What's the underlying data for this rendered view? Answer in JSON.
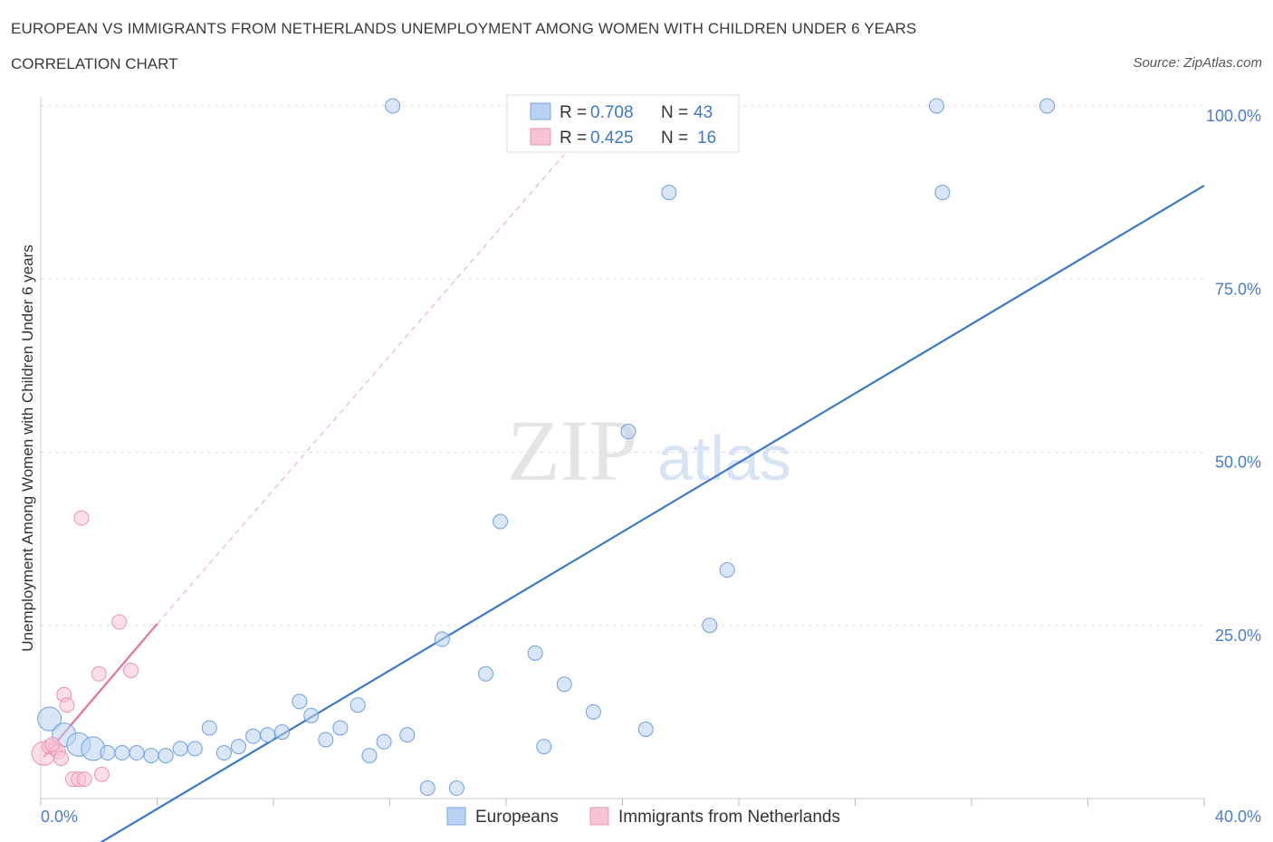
{
  "title": "EUROPEAN VS IMMIGRANTS FROM NETHERLANDS UNEMPLOYMENT AMONG WOMEN WITH CHILDREN UNDER 6 YEARS",
  "subtitle": "CORRELATION CHART",
  "source": "Source: ZipAtlas.com",
  "watermark": {
    "zip": "ZIP",
    "atlas": "atlas"
  },
  "colors": {
    "blue": "#3d78c8",
    "blue_fill": "#b9d2f3",
    "pink": "#e8709a",
    "pink_fill": "#f7c2d2",
    "grid": "#dddddd"
  },
  "legend": {
    "r_label": "R =",
    "n_label": "N =",
    "rows": [
      {
        "r": "0.708",
        "n": "43"
      },
      {
        "r": "0.425",
        "n": "16"
      }
    ]
  },
  "chart_data": {
    "type": "scatter",
    "title": "EUROPEAN VS IMMIGRANTS FROM NETHERLANDS UNEMPLOYMENT AMONG WOMEN WITH CHILDREN UNDER 6 YEARS",
    "xlabel": "",
    "ylabel": "Unemployment Among Women with Children Under 6 years",
    "xlim": [
      0,
      40
    ],
    "ylim": [
      0,
      100
    ],
    "x_tick_labels": [
      "0.0%",
      "40.0%"
    ],
    "y_tick_labels": [
      "25.0%",
      "50.0%",
      "75.0%",
      "100.0%"
    ],
    "y_ticks": [
      25,
      50,
      75,
      100
    ],
    "series": [
      {
        "name": "Europeans",
        "color": "#3d78c8",
        "r": 0.708,
        "n": 43,
        "trend": {
          "x0": 0,
          "y0": -11.5,
          "x1": 40,
          "y1": 88.5
        },
        "points": [
          {
            "x": 0.3,
            "y": 11.5,
            "big": true
          },
          {
            "x": 0.8,
            "y": 9.2,
            "big": true
          },
          {
            "x": 1.3,
            "y": 7.8,
            "big": true
          },
          {
            "x": 1.8,
            "y": 7.2,
            "big": true
          },
          {
            "x": 2.3,
            "y": 6.6
          },
          {
            "x": 2.8,
            "y": 6.6
          },
          {
            "x": 3.3,
            "y": 6.6
          },
          {
            "x": 3.8,
            "y": 6.2
          },
          {
            "x": 4.3,
            "y": 6.2
          },
          {
            "x": 4.8,
            "y": 7.2
          },
          {
            "x": 5.3,
            "y": 7.2
          },
          {
            "x": 5.8,
            "y": 10.2
          },
          {
            "x": 6.3,
            "y": 6.6
          },
          {
            "x": 6.8,
            "y": 7.5
          },
          {
            "x": 7.3,
            "y": 9.0
          },
          {
            "x": 7.8,
            "y": 9.2
          },
          {
            "x": 8.3,
            "y": 9.6
          },
          {
            "x": 8.9,
            "y": 14.0
          },
          {
            "x": 9.3,
            "y": 12.0
          },
          {
            "x": 9.8,
            "y": 8.5
          },
          {
            "x": 10.3,
            "y": 10.2
          },
          {
            "x": 10.9,
            "y": 13.5
          },
          {
            "x": 11.3,
            "y": 6.2
          },
          {
            "x": 11.8,
            "y": 8.2
          },
          {
            "x": 12.1,
            "y": 100.0
          },
          {
            "x": 12.6,
            "y": 9.2
          },
          {
            "x": 13.3,
            "y": 1.5
          },
          {
            "x": 13.8,
            "y": 23.0
          },
          {
            "x": 14.3,
            "y": 1.5
          },
          {
            "x": 15.3,
            "y": 18.0
          },
          {
            "x": 15.8,
            "y": 40.0
          },
          {
            "x": 17.0,
            "y": 21.0
          },
          {
            "x": 17.3,
            "y": 7.5
          },
          {
            "x": 18.0,
            "y": 16.5
          },
          {
            "x": 19.0,
            "y": 12.5
          },
          {
            "x": 20.2,
            "y": 53.0
          },
          {
            "x": 20.8,
            "y": 10.0
          },
          {
            "x": 21.6,
            "y": 87.5
          },
          {
            "x": 23.0,
            "y": 25.0
          },
          {
            "x": 23.6,
            "y": 33.0
          },
          {
            "x": 30.8,
            "y": 100.0
          },
          {
            "x": 31.0,
            "y": 87.5
          },
          {
            "x": 34.6,
            "y": 100.0
          }
        ]
      },
      {
        "name": "Immigrants from Netherlands",
        "color": "#e8709a",
        "r": 0.425,
        "n": 16,
        "trend": {
          "x0": 0.1,
          "y0": 6.0,
          "x1": 4.0,
          "y1": 25.2
        },
        "trend_dashed": {
          "x0": 4.0,
          "y0": 25.2,
          "x1": 18.0,
          "y1": 93.0
        },
        "points": [
          {
            "x": 0.1,
            "y": 6.5,
            "big": true
          },
          {
            "x": 0.3,
            "y": 7.5
          },
          {
            "x": 0.5,
            "y": 7.2
          },
          {
            "x": 0.6,
            "y": 6.8
          },
          {
            "x": 0.7,
            "y": 5.8
          },
          {
            "x": 0.8,
            "y": 15.0
          },
          {
            "x": 0.9,
            "y": 13.5
          },
          {
            "x": 1.1,
            "y": 2.8
          },
          {
            "x": 1.3,
            "y": 2.8
          },
          {
            "x": 1.4,
            "y": 40.5
          },
          {
            "x": 1.5,
            "y": 2.8
          },
          {
            "x": 2.0,
            "y": 18.0
          },
          {
            "x": 2.1,
            "y": 3.5
          },
          {
            "x": 2.7,
            "y": 25.5
          },
          {
            "x": 3.1,
            "y": 18.5
          },
          {
            "x": 0.4,
            "y": 7.8
          }
        ]
      }
    ]
  }
}
